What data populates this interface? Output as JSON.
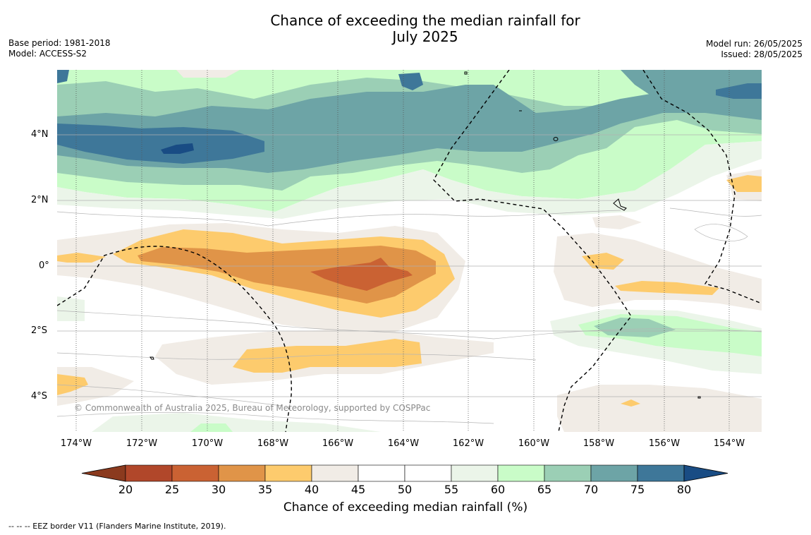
{
  "title_line1": "Chance of exceeding the median rainfall for",
  "title_line2": "July 2025",
  "base_period": "Base period: 1981-2018",
  "model": "Model: ACCESS-S2",
  "model_run": "Model run: 26/05/2025",
  "issued": "Issued: 28/05/2025",
  "lat_labels": [
    "4°N",
    "2°N",
    "0°",
    "2°S",
    "4°S"
  ],
  "lon_labels": [
    "174°W",
    "172°W",
    "170°W",
    "168°W",
    "166°W",
    "164°W",
    "162°W",
    "160°W",
    "158°W",
    "156°W",
    "154°W"
  ],
  "copyright": "© Commonwealth of Australia 2025, Bureau of Meteorology, supported by COSPPac",
  "colorbar": {
    "label": "Chance of exceeding median rainfall (%)",
    "ticks": [
      "20",
      "25",
      "30",
      "35",
      "40",
      "45",
      "50",
      "55",
      "60",
      "65",
      "70",
      "75",
      "80"
    ],
    "colors": [
      "#8b3a1e",
      "#b1472a",
      "#ca6233",
      "#e09448",
      "#fdcb6d",
      "#f1ece6",
      "#ffffff",
      "#ffffff",
      "#ebf5e9",
      "#c9fcc8",
      "#9bcfb5",
      "#6da4a6",
      "#3e7799",
      "#194c84"
    ]
  },
  "footnote": "--  --  -- EEZ border V11 (Flanders Marine Institute, 2019)."
}
